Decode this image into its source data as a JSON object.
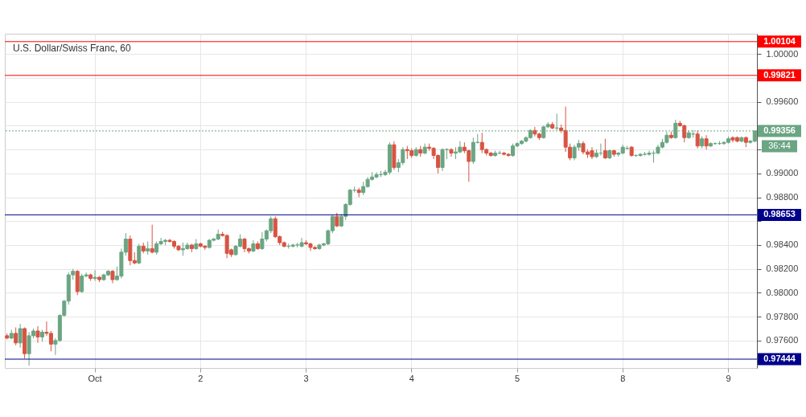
{
  "chart_data": {
    "type": "candlestick",
    "title": "U.S. Dollar/Swiss Franc, 60",
    "categories": [
      null,
      null,
      null,
      null,
      null,
      null,
      null,
      null,
      null,
      null,
      null,
      null,
      null,
      null,
      null,
      null,
      null,
      null,
      null,
      null,
      "Oct",
      null,
      null,
      null,
      null,
      null,
      null,
      null,
      null,
      null,
      null,
      null,
      null,
      null,
      null,
      null,
      null,
      null,
      null,
      null,
      null,
      null,
      null,
      null,
      "2",
      null,
      null,
      null,
      null,
      null,
      null,
      null,
      null,
      null,
      null,
      null,
      null,
      null,
      null,
      null,
      null,
      null,
      null,
      null,
      null,
      null,
      null,
      null,
      "3",
      null,
      null,
      null,
      null,
      null,
      null,
      null,
      null,
      null,
      null,
      null,
      null,
      null,
      null,
      null,
      null,
      null,
      null,
      null,
      null,
      null,
      null,
      null,
      "4",
      null,
      null,
      null,
      null,
      null,
      null,
      null,
      null,
      null,
      null,
      null,
      null,
      null,
      null,
      null,
      null,
      null,
      null,
      null,
      null,
      null,
      null,
      null,
      "5",
      null,
      null,
      null,
      null,
      null,
      null,
      null,
      null,
      null,
      null,
      null,
      null,
      null,
      null,
      null,
      null,
      null,
      null,
      null,
      null,
      null,
      null,
      null,
      "8",
      null,
      null,
      null,
      null,
      null,
      null,
      null,
      null,
      null,
      null,
      null,
      null,
      null,
      null,
      null,
      null,
      null,
      null,
      null,
      null,
      null,
      null,
      null,
      "9",
      null,
      null,
      null,
      null,
      null,
      null
    ],
    "ohlc": [
      [
        0.9764,
        0.9766,
        0.9761,
        0.9762
      ],
      [
        0.9762,
        0.9769,
        0.9761,
        0.9766
      ],
      [
        0.9766,
        0.9771,
        0.9756,
        0.9758
      ],
      [
        0.9758,
        0.9774,
        0.9754,
        0.977
      ],
      [
        0.977,
        0.9771,
        0.9745,
        0.9749
      ],
      [
        0.9749,
        0.9767,
        0.9739,
        0.9764
      ],
      [
        0.9764,
        0.977,
        0.9762,
        0.9768
      ],
      [
        0.9768,
        0.9772,
        0.9758,
        0.9763
      ],
      [
        0.9763,
        0.9769,
        0.9759,
        0.9767
      ],
      [
        0.9767,
        0.9776,
        0.9764,
        0.9766
      ],
      [
        0.9766,
        0.9768,
        0.9751,
        0.9757
      ],
      [
        0.9757,
        0.9762,
        0.9748,
        0.976
      ],
      [
        0.976,
        0.9782,
        0.9759,
        0.9781
      ],
      [
        0.9781,
        0.9794,
        0.978,
        0.9793
      ],
      [
        0.9793,
        0.9817,
        0.979,
        0.9815
      ],
      [
        0.9815,
        0.982,
        0.9811,
        0.9818
      ],
      [
        0.9818,
        0.9819,
        0.9798,
        0.9801
      ],
      [
        0.9801,
        0.9816,
        0.98,
        0.9814
      ],
      [
        0.9814,
        0.9817,
        0.9813,
        0.9815
      ],
      [
        0.9815,
        0.9816,
        0.981,
        0.9812
      ],
      [
        0.9812,
        0.9819,
        0.981,
        0.9813
      ],
      [
        0.9813,
        0.9814,
        0.9809,
        0.9811
      ],
      [
        0.9811,
        0.9816,
        0.981,
        0.9815
      ],
      [
        0.9815,
        0.9819,
        0.9814,
        0.9818
      ],
      [
        0.9818,
        0.9819,
        0.9808,
        0.9811
      ],
      [
        0.9811,
        0.9822,
        0.981,
        0.9814
      ],
      [
        0.9814,
        0.9837,
        0.9812,
        0.9834
      ],
      [
        0.9834,
        0.985,
        0.9831,
        0.9845
      ],
      [
        0.9845,
        0.9848,
        0.9823,
        0.9827
      ],
      [
        0.9827,
        0.9834,
        0.9824,
        0.9825
      ],
      [
        0.9825,
        0.9841,
        0.9824,
        0.9839
      ],
      [
        0.9839,
        0.9842,
        0.9833,
        0.9835
      ],
      [
        0.9835,
        0.9843,
        0.9832,
        0.9837
      ],
      [
        0.9837,
        0.9857,
        0.9833,
        0.9834
      ],
      [
        0.9834,
        0.9843,
        0.9832,
        0.9841
      ],
      [
        0.9841,
        0.9846,
        0.984,
        0.9843
      ],
      [
        0.9843,
        0.9845,
        0.984,
        0.9844
      ],
      [
        0.9844,
        0.9845,
        0.9842,
        0.9843
      ],
      [
        0.9843,
        0.9844,
        0.9837,
        0.9839
      ],
      [
        0.9839,
        0.984,
        0.9835,
        0.9836
      ],
      [
        0.9836,
        0.9842,
        0.9831,
        0.9837
      ],
      [
        0.9837,
        0.9842,
        0.9836,
        0.984
      ],
      [
        0.984,
        0.9841,
        0.9834,
        0.9837
      ],
      [
        0.9837,
        0.9845,
        0.9836,
        0.9841
      ],
      [
        0.9841,
        0.9842,
        0.9838,
        0.9839
      ],
      [
        0.9839,
        0.984,
        0.9836,
        0.9838
      ],
      [
        0.9838,
        0.9845,
        0.9837,
        0.9844
      ],
      [
        0.9844,
        0.9846,
        0.9843,
        0.9845
      ],
      [
        0.9845,
        0.9853,
        0.9844,
        0.9849
      ],
      [
        0.9849,
        0.9851,
        0.9847,
        0.9848
      ],
      [
        0.9848,
        0.9849,
        0.9829,
        0.9833
      ],
      [
        0.9836,
        0.9837,
        0.983,
        0.9832
      ],
      [
        0.9832,
        0.984,
        0.9831,
        0.9839
      ],
      [
        0.9839,
        0.9849,
        0.9838,
        0.9845
      ],
      [
        0.9845,
        0.9846,
        0.9834,
        0.9837
      ],
      [
        0.9837,
        0.9838,
        0.9833,
        0.9835
      ],
      [
        0.9835,
        0.9844,
        0.9834,
        0.9841
      ],
      [
        0.9841,
        0.9843,
        0.9836,
        0.9837
      ],
      [
        0.9837,
        0.9851,
        0.9836,
        0.9845
      ],
      [
        0.9845,
        0.9853,
        0.9843,
        0.9852
      ],
      [
        0.9852,
        0.9864,
        0.985,
        0.9862
      ],
      [
        0.9862,
        0.9864,
        0.9846,
        0.9847
      ],
      [
        0.9847,
        0.9848,
        0.984,
        0.9842
      ],
      [
        0.9842,
        0.9843,
        0.9838,
        0.9839
      ],
      [
        0.9839,
        0.9841,
        0.9837,
        0.9839
      ],
      [
        0.9839,
        0.9841,
        0.9838,
        0.984
      ],
      [
        0.984,
        0.9842,
        0.9838,
        0.984
      ],
      [
        0.9839,
        0.9846,
        0.9838,
        0.9842
      ],
      [
        0.9842,
        0.9844,
        0.984,
        0.9841
      ],
      [
        0.9841,
        0.9842,
        0.9835,
        0.9838
      ],
      [
        0.9838,
        0.9839,
        0.9836,
        0.9837
      ],
      [
        0.9837,
        0.9841,
        0.9836,
        0.984
      ],
      [
        0.984,
        0.9842,
        0.9839,
        0.9841
      ],
      [
        0.9841,
        0.9853,
        0.984,
        0.9852
      ],
      [
        0.9852,
        0.9865,
        0.985,
        0.9864
      ],
      [
        0.9864,
        0.9867,
        0.9855,
        0.9856
      ],
      [
        0.9856,
        0.9866,
        0.9855,
        0.9864
      ],
      [
        0.9864,
        0.9875,
        0.9861,
        0.9874
      ],
      [
        0.9874,
        0.9887,
        0.9873,
        0.9886
      ],
      [
        0.9886,
        0.9889,
        0.9884,
        0.9886
      ],
      [
        0.9886,
        0.9888,
        0.988,
        0.9884
      ],
      [
        0.9884,
        0.9893,
        0.9882,
        0.9889
      ],
      [
        0.9889,
        0.9897,
        0.9888,
        0.9895
      ],
      [
        0.9895,
        0.9901,
        0.9894,
        0.9897
      ],
      [
        0.9897,
        0.9901,
        0.9896,
        0.9899
      ],
      [
        0.9899,
        0.9902,
        0.9897,
        0.9899
      ],
      [
        0.9899,
        0.9903,
        0.9898,
        0.9901
      ],
      [
        0.9901,
        0.9926,
        0.9899,
        0.9924
      ],
      [
        0.9924,
        0.9927,
        0.9903,
        0.9905
      ],
      [
        0.9905,
        0.9912,
        0.9901,
        0.9909
      ],
      [
        0.9909,
        0.9922,
        0.9907,
        0.992
      ],
      [
        0.992,
        0.9923,
        0.9912,
        0.9919
      ],
      [
        0.9919,
        0.9921,
        0.9913,
        0.9915
      ],
      [
        0.9915,
        0.9922,
        0.9914,
        0.992
      ],
      [
        0.992,
        0.9923,
        0.9914,
        0.9917
      ],
      [
        0.9917,
        0.9925,
        0.9916,
        0.9922
      ],
      [
        0.9922,
        0.9925,
        0.9919,
        0.9921
      ],
      [
        0.9921,
        0.9922,
        0.9912,
        0.9915
      ],
      [
        0.9915,
        0.9916,
        0.99,
        0.9905
      ],
      [
        0.9905,
        0.9921,
        0.9902,
        0.992
      ],
      [
        0.992,
        0.9921,
        0.9912,
        0.992
      ],
      [
        0.992,
        0.9921,
        0.9914,
        0.9917
      ],
      [
        0.9917,
        0.9922,
        0.9912,
        0.9918
      ],
      [
        0.9918,
        0.9927,
        0.9917,
        0.9922
      ],
      [
        0.9922,
        0.9926,
        0.9917,
        0.9919
      ],
      [
        0.9919,
        0.992,
        0.9893,
        0.991
      ],
      [
        0.991,
        0.993,
        0.9908,
        0.9926
      ],
      [
        0.9926,
        0.9933,
        0.9925,
        0.9926
      ],
      [
        0.9926,
        0.9934,
        0.9917,
        0.992
      ],
      [
        0.992,
        0.9921,
        0.9915,
        0.9917
      ],
      [
        0.9917,
        0.9918,
        0.9914,
        0.9915
      ],
      [
        0.9915,
        0.9919,
        0.9914,
        0.9917
      ],
      [
        0.9917,
        0.9919,
        0.9916,
        0.9917
      ],
      [
        0.9917,
        0.9918,
        0.9915,
        0.9916
      ],
      [
        0.9916,
        0.9917,
        0.9914,
        0.9915
      ],
      [
        0.9915,
        0.9925,
        0.9914,
        0.9923
      ],
      [
        0.9923,
        0.9926,
        0.9922,
        0.9925
      ],
      [
        0.9925,
        0.9928,
        0.9924,
        0.9927
      ],
      [
        0.9927,
        0.9931,
        0.9926,
        0.993
      ],
      [
        0.993,
        0.9937,
        0.9929,
        0.9936
      ],
      [
        0.9936,
        0.9939,
        0.9931,
        0.9933
      ],
      [
        0.9933,
        0.9934,
        0.9928,
        0.993
      ],
      [
        0.993,
        0.994,
        0.9929,
        0.9939
      ],
      [
        0.9939,
        0.9943,
        0.9938,
        0.9941
      ],
      [
        0.9941,
        0.9943,
        0.9937,
        0.9938
      ],
      [
        0.9938,
        0.995,
        0.9936,
        0.9938
      ],
      [
        0.9938,
        0.9941,
        0.9934,
        0.9936
      ],
      [
        0.9936,
        0.9956,
        0.9918,
        0.9922
      ],
      [
        0.9922,
        0.9925,
        0.9911,
        0.9913
      ],
      [
        0.9913,
        0.9924,
        0.9911,
        0.9922
      ],
      [
        0.9922,
        0.9928,
        0.9919,
        0.9925
      ],
      [
        0.9925,
        0.9927,
        0.9916,
        0.9918
      ],
      [
        0.9918,
        0.992,
        0.9913,
        0.9916
      ],
      [
        0.9919,
        0.9922,
        0.9912,
        0.9914
      ],
      [
        0.9914,
        0.992,
        0.9913,
        0.9917
      ],
      [
        0.9917,
        0.9925,
        0.9915,
        0.9917
      ],
      [
        0.9919,
        0.9929,
        0.9912,
        0.9913
      ],
      [
        0.9913,
        0.992,
        0.9912,
        0.9919
      ],
      [
        0.9919,
        0.992,
        0.9914,
        0.9916
      ],
      [
        0.9916,
        0.9918,
        0.9914,
        0.9917
      ],
      [
        0.9917,
        0.9924,
        0.9916,
        0.9922
      ],
      [
        0.9921,
        0.9923,
        0.992,
        0.9921
      ],
      [
        0.9922,
        0.9923,
        0.9914,
        0.9915
      ],
      [
        0.9915,
        0.9916,
        0.9914,
        0.9915
      ],
      [
        0.9915,
        0.9917,
        0.9914,
        0.9916
      ],
      [
        0.9916,
        0.9918,
        0.9915,
        0.9916
      ],
      [
        0.9916,
        0.9919,
        0.9915,
        0.9917
      ],
      [
        0.9917,
        0.9919,
        0.9909,
        0.9917
      ],
      [
        0.9917,
        0.9924,
        0.9916,
        0.9922
      ],
      [
        0.9922,
        0.9929,
        0.9921,
        0.9926
      ],
      [
        0.9926,
        0.9935,
        0.9925,
        0.9932
      ],
      [
        0.9932,
        0.9935,
        0.9929,
        0.993
      ],
      [
        0.993,
        0.9945,
        0.9929,
        0.9942
      ],
      [
        0.9942,
        0.9944,
        0.9939,
        0.994
      ],
      [
        0.994,
        0.9941,
        0.9926,
        0.993
      ],
      [
        0.993,
        0.9936,
        0.9929,
        0.9934
      ],
      [
        0.9933,
        0.9936,
        0.993,
        0.9933
      ],
      [
        0.9933,
        0.9936,
        0.9921,
        0.9923
      ],
      [
        0.9923,
        0.9931,
        0.9921,
        0.9929
      ],
      [
        0.9929,
        0.9932,
        0.992,
        0.9923
      ],
      [
        0.9923,
        0.9926,
        0.9922,
        0.9925
      ],
      [
        0.9925,
        0.9926,
        0.9924,
        0.9925
      ],
      [
        0.9925,
        0.9927,
        0.9924,
        0.9925
      ],
      [
        0.9925,
        0.9927,
        0.9924,
        0.9926
      ],
      [
        0.9926,
        0.9931,
        0.9925,
        0.9929
      ],
      [
        0.993,
        0.9931,
        0.9926,
        0.9928
      ],
      [
        0.993,
        0.9931,
        0.9926,
        0.9927
      ],
      [
        0.9927,
        0.9931,
        0.9926,
        0.993
      ],
      [
        0.993,
        0.9931,
        0.9922,
        0.9926
      ],
      [
        0.9926,
        0.9928,
        0.9925,
        0.9927
      ],
      [
        0.9927,
        0.99356,
        0.9926,
        0.99356
      ]
    ],
    "colors": [
      "#d75442",
      "#6ba583",
      "#d75442",
      "#6ba583",
      "#d75442",
      "#6ba583",
      "#6ba583",
      "#d75442",
      "#6ba583",
      "#d75442",
      "#d75442",
      "#6ba583",
      "#6ba583",
      "#6ba583",
      "#6ba583",
      "#6ba583",
      "#d75442",
      "#6ba583",
      "#6ba583",
      "#d75442",
      "#6ba583",
      "#d75442",
      "#6ba583",
      "#6ba583",
      "#d75442",
      "#6ba583",
      "#6ba583",
      "#6ba583",
      "#d75442",
      "#d75442",
      "#6ba583",
      "#d75442",
      "#6ba583",
      "#d75442",
      "#6ba583",
      "#6ba583",
      "#6ba583",
      "#d75442",
      "#d75442",
      "#d75442",
      "#6ba583",
      "#6ba583",
      "#d75442",
      "#6ba583",
      "#d75442",
      "#d75442",
      "#6ba583",
      "#6ba583",
      "#6ba583",
      "#d75442",
      "#d75442",
      "#d75442",
      "#6ba583",
      "#6ba583",
      "#d75442",
      "#d75442",
      "#6ba583",
      "#d75442",
      "#6ba583",
      "#6ba583",
      "#6ba583",
      "#d75442",
      "#d75442",
      "#d75442",
      "#6ba583",
      "#6ba583",
      "#6ba583",
      "#6ba583",
      "#d75442",
      "#d75442",
      "#d75442",
      "#6ba583",
      "#6ba583",
      "#6ba583",
      "#6ba583",
      "#d75442",
      "#6ba583",
      "#6ba583",
      "#6ba583",
      "#6ba583",
      "#d75442",
      "#6ba583",
      "#6ba583",
      "#6ba583",
      "#6ba583",
      "#6ba583",
      "#6ba583",
      "#6ba583",
      "#d75442",
      "#6ba583",
      "#6ba583",
      "#d75442",
      "#d75442",
      "#6ba583",
      "#d75442",
      "#6ba583",
      "#d75442",
      "#d75442",
      "#d75442",
      "#6ba583",
      "#6ba583",
      "#d75442",
      "#6ba583",
      "#6ba583",
      "#d75442",
      "#d75442",
      "#6ba583",
      "#6ba583",
      "#d75442",
      "#d75442",
      "#d75442",
      "#6ba583",
      "#6ba583",
      "#d75442",
      "#d75442",
      "#6ba583",
      "#6ba583",
      "#6ba583",
      "#6ba583",
      "#6ba583",
      "#d75442",
      "#d75442",
      "#6ba583",
      "#6ba583",
      "#d75442",
      "#6ba583",
      "#d75442",
      "#d75442",
      "#d75442",
      "#6ba583",
      "#6ba583",
      "#d75442",
      "#d75442",
      "#d75442",
      "#6ba583",
      "#6ba583",
      "#d75442",
      "#6ba583",
      "#d75442",
      "#6ba583",
      "#6ba583",
      "#6ba583",
      "#d75442",
      "#6ba583",
      "#6ba583",
      "#6ba583",
      "#6ba583",
      "#6ba583",
      "#6ba583",
      "#6ba583",
      "#6ba583",
      "#d75442",
      "#6ba583",
      "#d75442",
      "#d75442",
      "#6ba583",
      "#6ba583",
      "#d75442",
      "#6ba583",
      "#d75442",
      "#6ba583",
      "#6ba583",
      "#6ba583",
      "#6ba583",
      "#6ba583",
      "#d75442",
      "#d75442",
      "#6ba583",
      "#d75442",
      "#6ba583",
      "#6ba583"
    ],
    "ylim": [
      0.9737,
      1.0017
    ],
    "yticks": [
      {
        "value": 0.976,
        "label": "0.97600"
      },
      {
        "value": 0.978,
        "label": "0.97800"
      },
      {
        "value": 0.98,
        "label": "0.98000"
      },
      {
        "value": 0.982,
        "label": "0.98200"
      },
      {
        "value": 0.984,
        "label": "0.98400"
      },
      {
        "value": 0.986,
        "label": null
      },
      {
        "value": 0.988,
        "label": "0.98800"
      },
      {
        "value": 0.99,
        "label": "0.99000"
      },
      {
        "value": 0.992,
        "label": null
      },
      {
        "value": 0.994,
        "label": null
      },
      {
        "value": 0.996,
        "label": "0.99600"
      },
      {
        "value": 0.998,
        "label": null
      },
      {
        "value": 1.0,
        "label": "1.00000"
      }
    ],
    "grid": true,
    "ref_lines": [
      {
        "axis": "y",
        "value": 1.00104,
        "label": "1.00104",
        "color": "#ff0000"
      },
      {
        "axis": "y",
        "value": 0.99821,
        "label": "0.99821",
        "color": "#ff0000"
      },
      {
        "axis": "y",
        "value": 0.98653,
        "label": "0.98653",
        "color": "#00008b"
      },
      {
        "axis": "y",
        "value": 0.97444,
        "label": "0.97444",
        "color": "#00008b"
      },
      {
        "axis": "y",
        "value": 0.99356,
        "label": "0.99356",
        "color": "#6ba583",
        "line_style": "dotted"
      }
    ],
    "annotations": [
      "36:44"
    ]
  }
}
